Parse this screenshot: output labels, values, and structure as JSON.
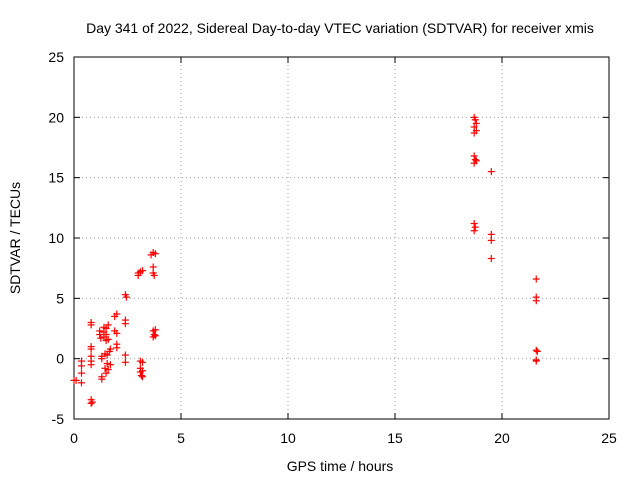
{
  "chart_data": {
    "type": "scatter",
    "title": "Day 341 of 2022, Sidereal Day-to-day VTEC variation (SDTVAR) for receiver xmis",
    "xlabel": "GPS time / hours",
    "ylabel": "SDTVAR / TECUs",
    "xlim": [
      0,
      25
    ],
    "ylim": [
      -5,
      25
    ],
    "xticks": [
      0,
      5,
      10,
      15,
      20,
      25
    ],
    "yticks": [
      -5,
      0,
      5,
      10,
      15,
      20,
      25
    ],
    "grid": true,
    "marker": "+",
    "color": "#ff0000",
    "series": [
      {
        "name": "SDTVAR",
        "points": [
          [
            0.0,
            -1.8
          ],
          [
            0.1,
            -1.8
          ],
          [
            0.35,
            -0.2
          ],
          [
            0.35,
            -0.6
          ],
          [
            0.35,
            -1.2
          ],
          [
            0.35,
            -2.0
          ],
          [
            0.8,
            3.0
          ],
          [
            0.8,
            2.8
          ],
          [
            0.8,
            1.0
          ],
          [
            0.8,
            0.8
          ],
          [
            0.8,
            0.2
          ],
          [
            0.8,
            -0.2
          ],
          [
            0.8,
            -0.5
          ],
          [
            0.8,
            -3.4
          ],
          [
            0.85,
            -3.6
          ],
          [
            0.8,
            -3.7
          ],
          [
            1.2,
            2.3
          ],
          [
            1.2,
            2.0
          ],
          [
            1.25,
            1.7
          ],
          [
            1.3,
            0.2
          ],
          [
            1.3,
            0.0
          ],
          [
            1.3,
            -1.5
          ],
          [
            1.3,
            -1.7
          ],
          [
            1.4,
            2.6
          ],
          [
            1.4,
            2.2
          ],
          [
            1.4,
            1.8
          ],
          [
            1.45,
            0.4
          ],
          [
            1.45,
            -0.8
          ],
          [
            1.5,
            -1.2
          ],
          [
            1.5,
            2.5
          ],
          [
            1.5,
            2.0
          ],
          [
            1.5,
            1.5
          ],
          [
            1.55,
            0.3
          ],
          [
            1.55,
            -0.4
          ],
          [
            1.6,
            -0.9
          ],
          [
            1.6,
            2.8
          ],
          [
            1.6,
            1.6
          ],
          [
            1.65,
            0.6
          ],
          [
            1.7,
            -0.5
          ],
          [
            1.7,
            0.8
          ],
          [
            1.9,
            3.5
          ],
          [
            1.9,
            2.3
          ],
          [
            2.0,
            3.7
          ],
          [
            2.0,
            2.1
          ],
          [
            2.0,
            1.2
          ],
          [
            2.0,
            0.9
          ],
          [
            2.4,
            5.3
          ],
          [
            2.45,
            5.1
          ],
          [
            2.4,
            3.2
          ],
          [
            2.4,
            2.9
          ],
          [
            2.4,
            0.3
          ],
          [
            2.4,
            -0.3
          ],
          [
            3.0,
            7.1
          ],
          [
            3.0,
            6.9
          ],
          [
            3.1,
            7.2
          ],
          [
            3.2,
            7.3
          ],
          [
            3.1,
            -0.2
          ],
          [
            3.1,
            -0.8
          ],
          [
            3.1,
            -1.1
          ],
          [
            3.15,
            -1.4
          ],
          [
            3.2,
            -0.3
          ],
          [
            3.2,
            -1.5
          ],
          [
            3.2,
            -1.0
          ],
          [
            3.6,
            8.6
          ],
          [
            3.7,
            8.8
          ],
          [
            3.8,
            8.7
          ],
          [
            3.7,
            7.6
          ],
          [
            3.7,
            7.1
          ],
          [
            3.75,
            6.9
          ],
          [
            3.7,
            2.3
          ],
          [
            3.75,
            2.0
          ],
          [
            3.7,
            1.8
          ],
          [
            3.8,
            2.4
          ],
          [
            3.8,
            1.9
          ],
          [
            18.7,
            20.0
          ],
          [
            18.75,
            19.8
          ],
          [
            18.8,
            19.5
          ],
          [
            18.7,
            19.2
          ],
          [
            18.8,
            18.9
          ],
          [
            18.7,
            18.7
          ],
          [
            18.7,
            16.8
          ],
          [
            18.75,
            16.5
          ],
          [
            18.7,
            16.2
          ],
          [
            18.8,
            16.4
          ],
          [
            18.7,
            11.2
          ],
          [
            18.75,
            10.9
          ],
          [
            18.7,
            10.6
          ],
          [
            19.5,
            15.5
          ],
          [
            19.5,
            10.3
          ],
          [
            19.5,
            9.8
          ],
          [
            19.5,
            8.3
          ],
          [
            21.6,
            6.6
          ],
          [
            21.6,
            5.1
          ],
          [
            21.6,
            4.8
          ],
          [
            21.6,
            0.7
          ],
          [
            21.65,
            0.6
          ],
          [
            21.6,
            -0.1
          ],
          [
            21.6,
            -0.2
          ]
        ]
      }
    ]
  }
}
